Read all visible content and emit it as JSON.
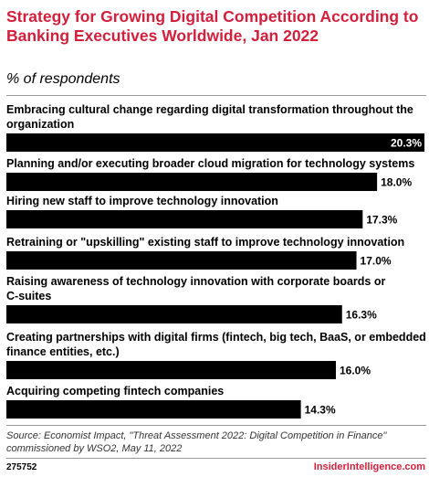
{
  "header": {
    "title": "Strategy for Growing Digital Competition According to Banking Executives Worldwide, Jan 2022",
    "subtitle": "% of respondents"
  },
  "footer": {
    "source": "Source: Economist Impact, \"Threat Assessment 2022: Digital Competition in Finance\" commissioned by WSO2, May 11, 2022",
    "chart_id": "275752",
    "brand": "InsiderIntelligence.com"
  },
  "colors": {
    "bar": "#000000",
    "title": "#d21f3c",
    "brand": "#d21f3c"
  },
  "chart_data": {
    "type": "bar",
    "orientation": "horizontal",
    "title": "Strategy for Growing Digital Competition According to Banking Executives Worldwide, Jan 2022",
    "subtitle": "% of respondents",
    "categories": [
      "Embracing cultural change regarding digital transformation throughout the organization",
      "Planning and/or executing broader cloud migration for technology systems",
      "Hiring new staff to improve technology innovation",
      "Retraining or \"upskilling\" existing staff to improve technology innovation",
      "Raising awareness of technology innovation with corporate boards or C-suites",
      "Creating partnerships with digital firms (fintech, big tech, BaaS, or embedded finance entities, etc.)",
      "Acquiring competing fintech companies"
    ],
    "category_lines": [
      [
        "Embracing cultural change regarding digital transformation throughout the",
        "organization"
      ],
      [
        "Planning and/or executing broader cloud migration for technology systems"
      ],
      [
        "Hiring new staff to improve technology innovation"
      ],
      [
        "Retraining or \"upskilling\" existing staff to improve technology innovation"
      ],
      [
        "Raising awareness of technology innovation with corporate boards or",
        "C-suites"
      ],
      [
        "Creating partnerships with digital firms (fintech, big tech, BaaS, or embedded",
        "finance entities, etc.)"
      ],
      [
        "Acquiring competing fintech companies"
      ]
    ],
    "values": [
      20.3,
      18.0,
      17.3,
      17.0,
      16.3,
      16.0,
      14.3
    ],
    "value_labels": [
      "20.3%",
      "18.0%",
      "17.3%",
      "17.0%",
      "16.3%",
      "16.0%",
      "14.3%"
    ],
    "xlim": [
      0,
      20.3
    ],
    "grid": false,
    "legend": "none"
  }
}
